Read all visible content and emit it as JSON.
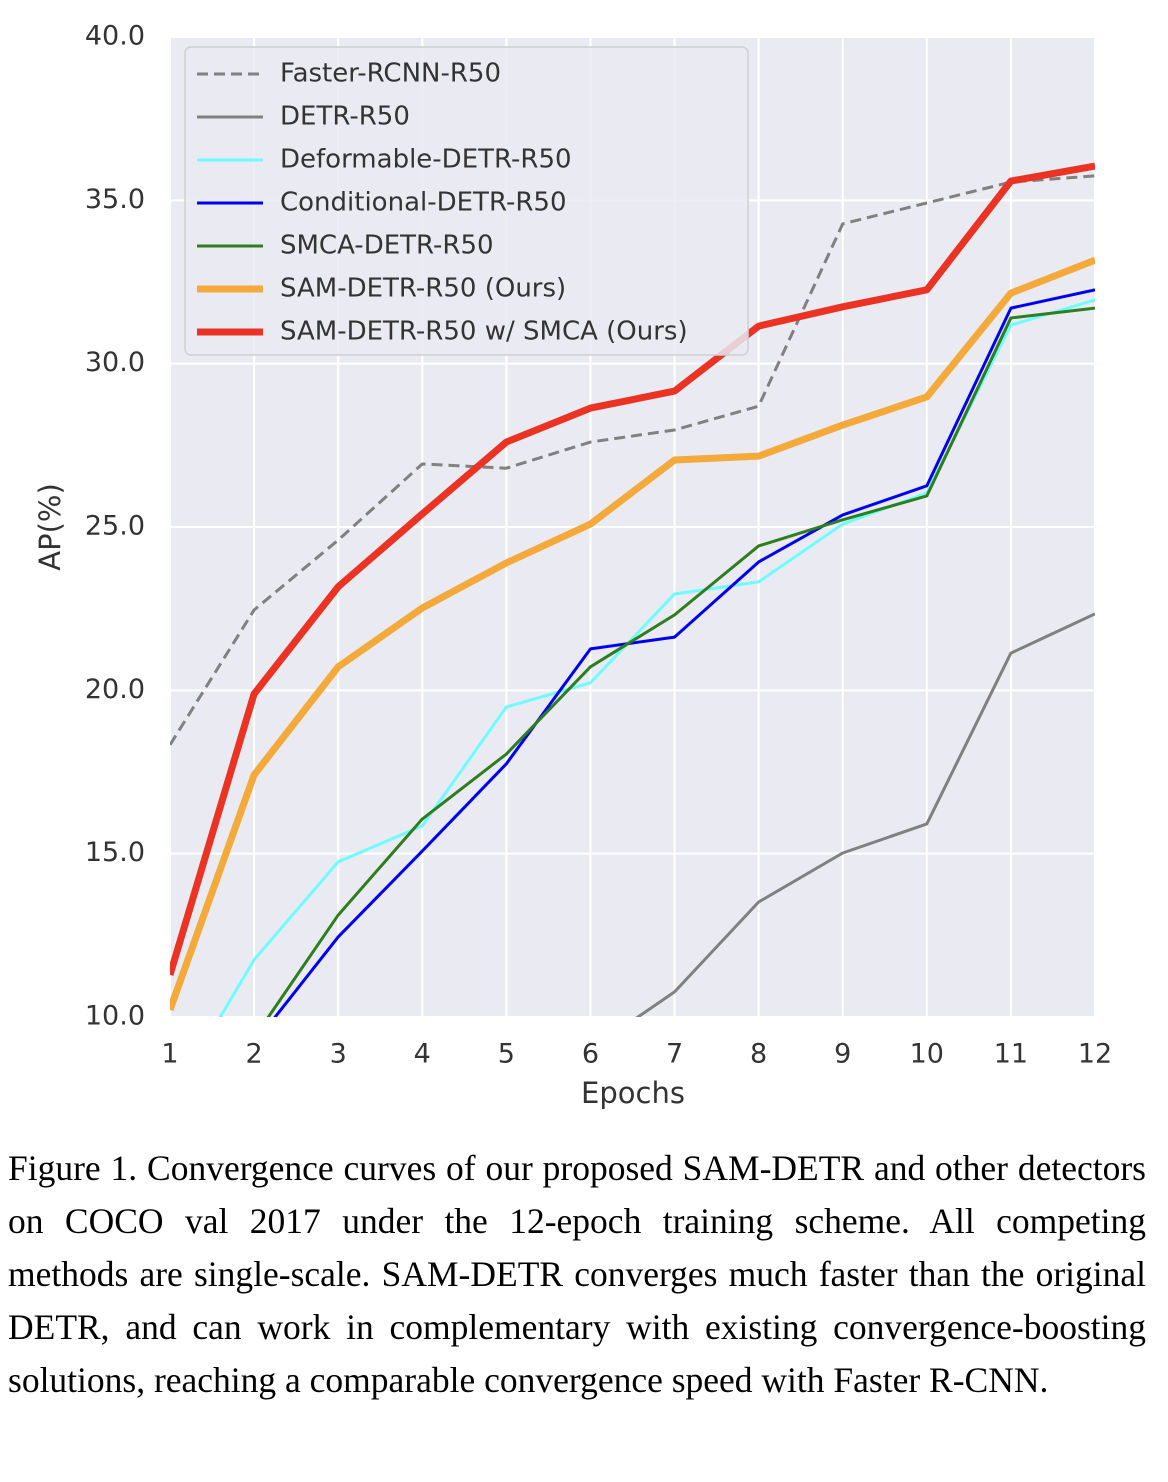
{
  "chart_data": {
    "type": "line",
    "x_label": "Epochs",
    "y_label": "AP(%)",
    "x": [
      1,
      2,
      3,
      4,
      5,
      6,
      7,
      8,
      9,
      10,
      11,
      12
    ],
    "xlim": [
      1,
      12
    ],
    "xticks": [
      1,
      2,
      3,
      4,
      5,
      6,
      7,
      8,
      9,
      10,
      11,
      12
    ],
    "ylim": [
      10,
      40
    ],
    "yticks": [
      {
        "value": 10,
        "label": "10.0"
      },
      {
        "value": 15,
        "label": "15.0"
      },
      {
        "value": 20,
        "label": "20.0"
      },
      {
        "value": 25,
        "label": "25.0"
      },
      {
        "value": 30,
        "label": "30.0"
      },
      {
        "value": 35,
        "label": "35.0"
      },
      {
        "value": 40,
        "label": "40.0"
      }
    ],
    "grid": true,
    "legend": "upper left",
    "series": [
      {
        "name": "Faster-RCNN-R50",
        "color": "#808080",
        "linestyle": "dashed",
        "values": [
          18.33,
          22.46,
          24.6,
          26.93,
          26.8,
          27.6,
          27.97,
          28.7,
          34.28,
          34.92,
          35.56,
          35.75
        ]
      },
      {
        "name": "DETR-R50",
        "color": "#808080",
        "values": [
          null,
          null,
          null,
          null,
          null,
          9.0,
          10.77,
          13.52,
          15.02,
          15.91,
          21.14,
          22.34
        ]
      },
      {
        "name": "Deformable-DETR-R50",
        "color": "#6ffcff",
        "values": [
          7.4,
          11.75,
          14.75,
          15.85,
          19.49,
          20.23,
          22.95,
          23.32,
          25.09,
          26.04,
          31.18,
          31.95
        ]
      },
      {
        "name": "Conditional-DETR-R50",
        "color": "#0000ee",
        "values": [
          null,
          9.18,
          12.45,
          15.08,
          17.75,
          21.27,
          21.63,
          23.93,
          25.37,
          26.26,
          31.7,
          32.26
        ]
      },
      {
        "name": "SMCA-DETR-R50",
        "color": "#2e7d1e",
        "values": [
          null,
          9.36,
          13.12,
          16.06,
          18.05,
          20.72,
          22.31,
          24.42,
          25.22,
          25.95,
          31.4,
          31.7
        ]
      },
      {
        "name": "SAM-DETR-R50 (Ours)",
        "color": "#f4a93b",
        "values": [
          10.22,
          17.41,
          20.72,
          22.52,
          23.9,
          25.09,
          27.05,
          27.17,
          28.12,
          28.98,
          32.16,
          33.17
        ]
      },
      {
        "name": "SAM-DETR-R50 w/ SMCA (Ours)",
        "color": "#ea3323",
        "values": [
          11.29,
          19.89,
          23.17,
          25.4,
          27.6,
          28.64,
          29.16,
          31.15,
          31.74,
          32.26,
          35.59,
          36.05
        ]
      }
    ],
    "caption": "Figure 1.  Convergence curves of our proposed SAM-DETR and other detectors on COCO val 2017 under the 12-epoch training scheme.  All competing methods are single-scale.  SAM-DETR converges much faster than the original DETR, and can work in complementary with existing convergence-boosting solutions, reaching a comparable convergence speed with Faster R-CNN."
  }
}
